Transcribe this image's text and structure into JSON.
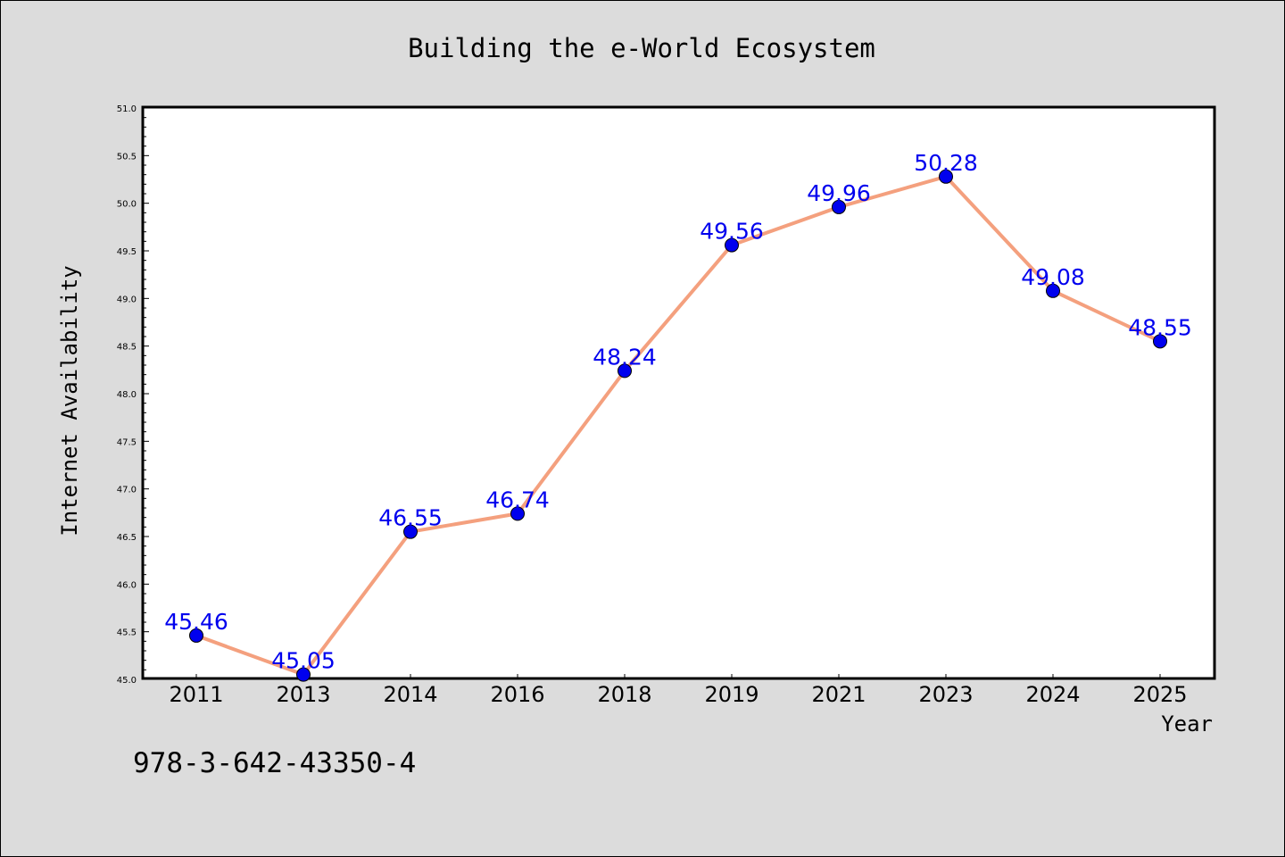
{
  "chart_data": {
    "type": "line",
    "title": "Building the e-World Ecosystem",
    "xlabel": "Year",
    "ylabel": "Internet Availability",
    "categories": [
      "2011",
      "2013",
      "2014",
      "2016",
      "2018",
      "2019",
      "2021",
      "2023",
      "2024",
      "2025"
    ],
    "values": [
      45.46,
      45.05,
      46.55,
      46.74,
      48.24,
      49.56,
      49.96,
      50.28,
      49.08,
      48.55
    ],
    "ylim": [
      45.0,
      51.0
    ],
    "yticks": [
      "45.0",
      "45.5",
      "46.0",
      "46.5",
      "47.0",
      "47.5",
      "48.0",
      "48.5",
      "49.0",
      "49.5",
      "50.0",
      "50.5",
      "51.0"
    ],
    "grid": false,
    "legend": "none",
    "data_labels": true,
    "colors": {
      "line": "#f4a07e",
      "marker": "#0000ee",
      "label": "#0000ee",
      "background": "#dcdcdc",
      "plot_area": "#ffffff"
    }
  },
  "footer_text": "978-3-642-43350-4"
}
